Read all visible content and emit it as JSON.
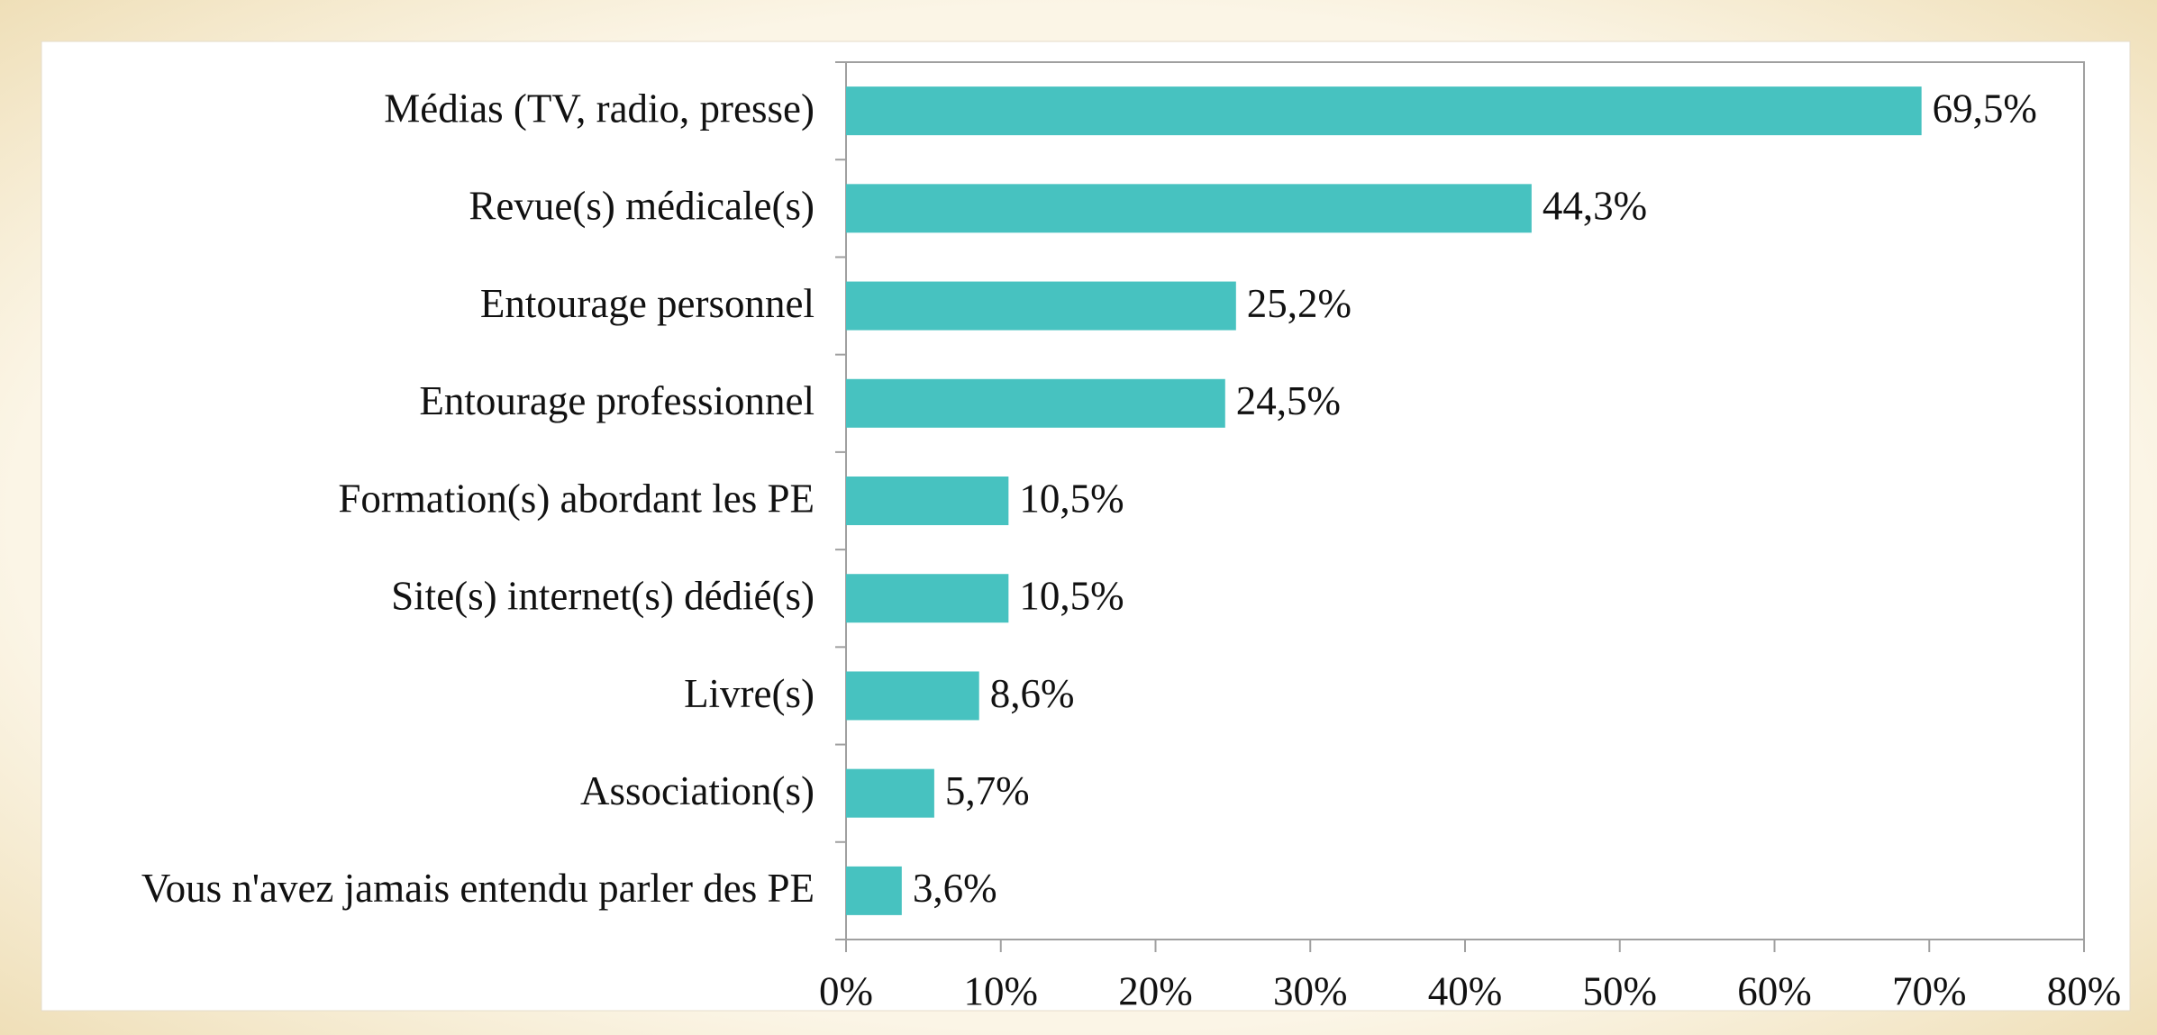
{
  "chart_data": {
    "type": "bar",
    "orientation": "horizontal",
    "categories": [
      "Médias (TV, radio, presse)",
      "Revue(s) médicale(s)",
      "Entourage personnel",
      "Entourage professionnel",
      "Formation(s) abordant les PE",
      "Site(s) internet(s) dédié(s)",
      "Livre(s)",
      "Association(s)",
      "Vous n'avez jamais entendu parler des PE"
    ],
    "values": [
      69.5,
      44.3,
      25.2,
      24.5,
      10.5,
      10.5,
      8.6,
      5.7,
      3.6
    ],
    "value_labels": [
      "69,5%",
      "44,3%",
      "25,2%",
      "24,5%",
      "10,5%",
      "10,5%",
      "8,6%",
      "5,7%",
      "3,6%"
    ],
    "color": "#47c2c0",
    "xlim": [
      0,
      80
    ],
    "xticks": [
      {
        "value": 0,
        "label": "0%"
      },
      {
        "value": 10,
        "label": "10%"
      },
      {
        "value": 20,
        "label": "20%"
      },
      {
        "value": 30,
        "label": "30%"
      },
      {
        "value": 40,
        "label": "40%"
      },
      {
        "value": 50,
        "label": "50%"
      },
      {
        "value": 60,
        "label": "60%"
      },
      {
        "value": 70,
        "label": "70%"
      },
      {
        "value": 80,
        "label": "80%"
      }
    ],
    "grid": false
  }
}
